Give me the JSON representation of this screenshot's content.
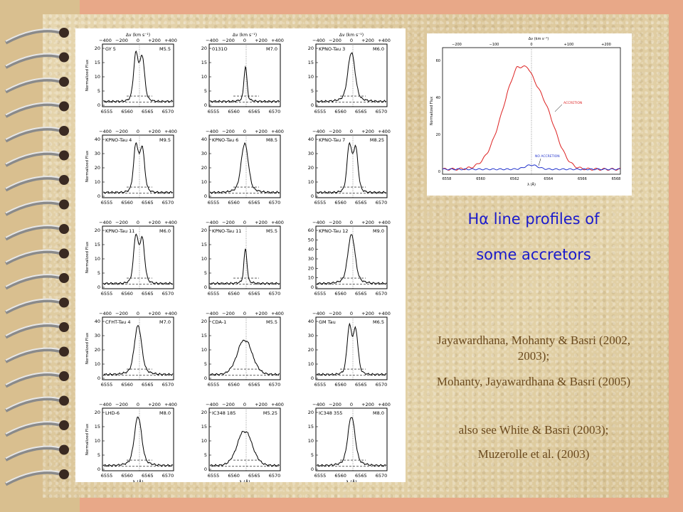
{
  "title": {
    "line1_prefix": "H",
    "line1_greek": "α",
    "line1_rest": " line profiles of",
    "line2": "some accretors"
  },
  "citations": [
    "Jayawardhana, Mohanty & Basri (2002, 2003);",
    "Mohanty, Jayawardhana & Basri (2005)",
    "also see White & Basri (2003);",
    "Muzerolle et al. (2003)"
  ],
  "grid": {
    "top_axis_label": "Δv (km s⁻¹)",
    "y_axis_label": "Normalized Flux",
    "x_axis_label": "λ (Å)",
    "panels": [
      {
        "name": "GY 5",
        "spt": "M5.5",
        "yticks": [
          "0",
          "5",
          "10",
          "15",
          "20"
        ],
        "xticks": [
          "6555",
          "6560",
          "6565",
          "6570"
        ],
        "vticks": [
          "−400",
          "−200",
          "0",
          "+200",
          "+400"
        ],
        "shape": "double",
        "ymax": 20
      },
      {
        "name": "0131O",
        "spt": "M7.0",
        "yticks": [
          "0",
          "5",
          "10",
          "15",
          "20"
        ],
        "xticks": [
          "6555",
          "6560",
          "6565",
          "6570"
        ],
        "vticks": [
          "−400",
          "−200",
          "0",
          "+200",
          "+400"
        ],
        "shape": "narrow",
        "ymax": 20
      },
      {
        "name": "KPNO-Tau 3",
        "spt": "M6.0",
        "yticks": [
          "0",
          "5",
          "10",
          "15",
          "20"
        ],
        "xticks": [
          "6555",
          "6560",
          "6565",
          "6570"
        ],
        "vticks": [
          "−400",
          "−200",
          "0",
          "+200",
          "+400"
        ],
        "shape": "single",
        "ymax": 20
      },
      {
        "name": "KPNO-Tau 4",
        "spt": "M9.5",
        "yticks": [
          "0",
          "10",
          "20",
          "30",
          "40"
        ],
        "xticks": [
          "6555",
          "6560",
          "6565",
          "6570"
        ],
        "vticks": [
          "−400",
          "−200",
          "0",
          "+200",
          "+400"
        ],
        "shape": "double",
        "ymax": 40
      },
      {
        "name": "KPNO-Tau 6",
        "spt": "M8.5",
        "yticks": [
          "0",
          "10",
          "20",
          "30",
          "40"
        ],
        "xticks": [
          "6555",
          "6560",
          "6565",
          "6570"
        ],
        "vticks": [
          "−400",
          "−200",
          "0",
          "+200",
          "+400"
        ],
        "shape": "single",
        "ymax": 40
      },
      {
        "name": "KPNO-Tau 7",
        "spt": "M8.25",
        "yticks": [
          "0",
          "10",
          "20",
          "30",
          "40"
        ],
        "xticks": [
          "6555",
          "6560",
          "6565",
          "6570"
        ],
        "vticks": [
          "−400",
          "−200",
          "0",
          "+200",
          "+400"
        ],
        "shape": "double",
        "ymax": 40
      },
      {
        "name": "KPNO-Tau 11",
        "spt": "M6.0",
        "yticks": [
          "0",
          "5",
          "10",
          "15",
          "20"
        ],
        "xticks": [
          "6555",
          "6560",
          "6565",
          "6570"
        ],
        "vticks": [
          "−400",
          "−200",
          "0",
          "+200",
          "+400"
        ],
        "shape": "double",
        "ymax": 20
      },
      {
        "name": "KPNO-Tau 11",
        "spt": "M5.5",
        "yticks": [
          "0",
          "5",
          "10",
          "15",
          "20"
        ],
        "xticks": [
          "6555",
          "6560",
          "6565",
          "6570"
        ],
        "vticks": [
          "−400",
          "−200",
          "0",
          "+200",
          "+400"
        ],
        "shape": "narrow",
        "ymax": 20
      },
      {
        "name": "KPNO-Tau 12",
        "spt": "M9.0",
        "yticks": [
          "0",
          "10",
          "20",
          "30",
          "40",
          "50",
          "60"
        ],
        "xticks": [
          "6555",
          "6560",
          "6565",
          "6570"
        ],
        "vticks": [
          "−400",
          "−200",
          "0",
          "+200",
          "+400"
        ],
        "shape": "single",
        "ymax": 60
      },
      {
        "name": "CFHT-Tau 4",
        "spt": "M7.0",
        "yticks": [
          "0",
          "10",
          "20",
          "30",
          "40"
        ],
        "xticks": [
          "6555",
          "6560",
          "6565",
          "6570"
        ],
        "vticks": [
          "−400",
          "−200",
          "0",
          "+200",
          "+400"
        ],
        "shape": "single",
        "ymax": 40
      },
      {
        "name": "CDA-1",
        "spt": "M5.5",
        "yticks": [
          "0",
          "5",
          "10",
          "15",
          "20"
        ],
        "xticks": [
          "6555",
          "6560",
          "6565",
          "6570"
        ],
        "vticks": [
          "−400",
          "−200",
          "0",
          "+200",
          "+400"
        ],
        "shape": "broad",
        "ymax": 20
      },
      {
        "name": "GM Tau",
        "spt": "M6.5",
        "yticks": [
          "0",
          "10",
          "20",
          "30",
          "40"
        ],
        "xticks": [
          "6555",
          "6560",
          "6565",
          "6570"
        ],
        "vticks": [
          "−400",
          "−200",
          "0",
          "+200",
          "+400"
        ],
        "shape": "double",
        "ymax": 40
      },
      {
        "name": "LHD-6",
        "spt": "M8.0",
        "yticks": [
          "0",
          "5",
          "10",
          "15",
          "20"
        ],
        "xticks": [
          "6555",
          "6560",
          "6565",
          "6570"
        ],
        "vticks": [
          "−400",
          "−200",
          "0",
          "+200",
          "+400"
        ],
        "shape": "single",
        "ymax": 20
      },
      {
        "name": "IC348 185",
        "spt": "M5.25",
        "yticks": [
          "0",
          "5",
          "10",
          "15",
          "20"
        ],
        "xticks": [
          "6555",
          "6560",
          "6565",
          "6570"
        ],
        "vticks": [
          "−400",
          "−200",
          "0",
          "+200",
          "+400"
        ],
        "shape": "broad",
        "ymax": 20
      },
      {
        "name": "IC348 355",
        "spt": "M8.0",
        "yticks": [
          "0",
          "5",
          "10",
          "15",
          "20"
        ],
        "xticks": [
          "6555",
          "6560",
          "6565",
          "6570"
        ],
        "vticks": [
          "−400",
          "−200",
          "0",
          "+200",
          "+400"
        ],
        "shape": "single",
        "ymax": 20
      }
    ]
  },
  "accretion_plot": {
    "top_axis_label": "Δv (km s⁻¹)",
    "y_axis_label": "Normalized Flux",
    "x_axis_label": "λ (Å)",
    "vticks": [
      "−200",
      "−100",
      "0",
      "+100",
      "+200"
    ],
    "yticks": [
      "0",
      "20",
      "40",
      "60"
    ],
    "xticks": [
      "6558",
      "6560",
      "6562",
      "6564",
      "6566",
      "6568"
    ],
    "label_accretion": "ACCRETION",
    "label_no_accretion": "NO ACCRETION",
    "color_accretion": "#dd2222",
    "color_no_accretion": "#2233cc"
  }
}
